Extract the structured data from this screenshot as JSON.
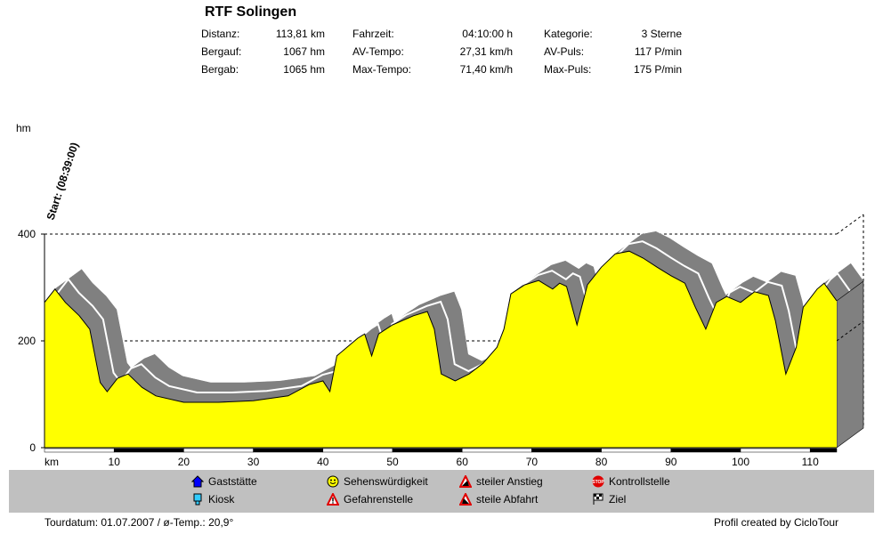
{
  "header": {
    "title": "RTF Solingen",
    "stats": [
      {
        "label": "Distanz:",
        "value": "113,81 km"
      },
      {
        "label": "Bergauf:",
        "value": "1067 hm"
      },
      {
        "label": "Bergab:",
        "value": "1065 hm"
      },
      {
        "label": "Fahrzeit:",
        "value": "04:10:00 h"
      },
      {
        "label": "AV-Tempo:",
        "value": "27,31 km/h"
      },
      {
        "label": "Max-Tempo:",
        "value": "71,40 km/h"
      },
      {
        "label": "Kategorie:",
        "value": "3 Sterne"
      },
      {
        "label": "AV-Puls:",
        "value": "117 P/min"
      },
      {
        "label": "Max-Puls:",
        "value": "175 P/min"
      }
    ]
  },
  "chart_data": {
    "type": "area",
    "title": "RTF Solingen",
    "ylabel": "hm",
    "xlabel": "km",
    "xlim": [
      0,
      113.81
    ],
    "ylim": [
      0,
      400
    ],
    "yticks": [
      "0",
      "200",
      "400"
    ],
    "xticks": [
      "10",
      "20",
      "30",
      "40",
      "50",
      "60",
      "70",
      "80",
      "90",
      "100",
      "110"
    ],
    "start_annotation": "Start: (08:39:00)",
    "grid": "dashed at 200, 400",
    "x": [
      0,
      1.5,
      3,
      5,
      6.5,
      8,
      9,
      10.5,
      12,
      14,
      16,
      20,
      25,
      30,
      35,
      38,
      40,
      41,
      42,
      45,
      46,
      47,
      48,
      50,
      53,
      55,
      56,
      57,
      59,
      61,
      63,
      65,
      66,
      67,
      69,
      71,
      73,
      74,
      75,
      76.5,
      78,
      80,
      82,
      84,
      86,
      88,
      90,
      92,
      93.5,
      95,
      96.5,
      98,
      100,
      102,
      104,
      105,
      106.5,
      108,
      109,
      111,
      112,
      113.81
    ],
    "y": [
      272,
      297,
      272,
      247,
      222,
      122,
      105,
      130,
      138,
      113,
      97,
      85,
      85,
      88,
      97,
      118,
      125,
      105,
      172,
      205,
      213,
      172,
      213,
      230,
      247,
      255,
      222,
      138,
      125,
      138,
      158,
      188,
      222,
      288,
      305,
      313,
      297,
      308,
      302,
      230,
      305,
      338,
      363,
      368,
      355,
      338,
      322,
      308,
      263,
      222,
      272,
      283,
      272,
      292,
      285,
      238,
      138,
      188,
      263,
      297,
      308,
      275
    ]
  },
  "legend": [
    {
      "label": "Gaststätte",
      "icon": "house-icon"
    },
    {
      "label": "Kiosk",
      "icon": "kiosk-icon"
    },
    {
      "label": "Sehenswürdigkeit",
      "icon": "smiley-icon"
    },
    {
      "label": "Gefahrenstelle",
      "icon": "warning-icon"
    },
    {
      "label": "steiler Anstieg",
      "icon": "steep-climb-icon"
    },
    {
      "label": "steile Abfahrt",
      "icon": "steep-descent-icon"
    },
    {
      "label": "Kontrollstelle",
      "icon": "stop-icon",
      "stop_text": "STOP"
    },
    {
      "label": "Ziel",
      "icon": "finish-flag-icon"
    }
  ],
  "footer": {
    "left": "Tourdatum: 01.07.2007  /  ø-Temp.: 20,9°",
    "right": "Profil created by CicloTour"
  },
  "colors": {
    "profile": "#ffff00",
    "shadow": "#808080",
    "legend_bg": "#c0c0c0"
  }
}
